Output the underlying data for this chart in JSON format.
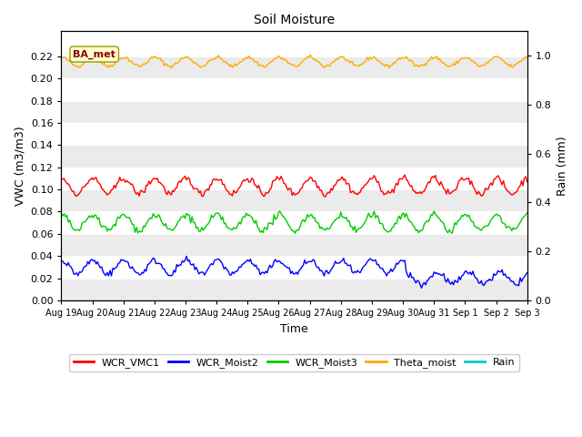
{
  "title": "Soil Moisture",
  "ylabel_left": "VWC (m3/m3)",
  "ylabel_right": "Rain (mm)",
  "xlabel": "Time",
  "background_color": "#ffffff",
  "plot_bg_color": "#ffffff",
  "band_color_light": "#ebebeb",
  "band_color_white": "#ffffff",
  "ylim_left": [
    0.0,
    0.2425
  ],
  "ylim_right": [
    0.0,
    1.1
  ],
  "yticks_left": [
    0.0,
    0.02,
    0.04,
    0.06,
    0.08,
    0.1,
    0.12,
    0.14,
    0.16,
    0.18,
    0.2,
    0.22
  ],
  "yticks_right_vals": [
    0.0,
    0.2,
    0.4,
    0.6,
    0.8,
    1.0
  ],
  "yticks_right_labels": [
    "0.0",
    "0.2",
    "0.4",
    "0.6",
    "0.8",
    "1.0"
  ],
  "colors": {
    "WCR_VMC1": "#ff0000",
    "WCR_Moist2": "#0000ff",
    "WCR_Moist3": "#00cc00",
    "Theta_moist": "#ffaa00",
    "Rain": "#00cccc"
  },
  "n_points": 336,
  "theta_mean": 0.215,
  "theta_amp": 0.004,
  "wcr1_mean": 0.103,
  "wcr1_amp": 0.007,
  "wcr2_mean": 0.03,
  "wcr2_amp": 0.006,
  "wcr3_mean": 0.07,
  "wcr3_amp": 0.007,
  "legend_labels": [
    "WCR_VMC1",
    "WCR_Moist2",
    "WCR_Moist3",
    "Theta_moist",
    "Rain"
  ],
  "annotation_text": "BA_met",
  "xtick_labels": [
    "Aug 19",
    "Aug 20",
    "Aug 21",
    "Aug 22",
    "Aug 23",
    "Aug 24",
    "Aug 25",
    "Aug 26",
    "Aug 27",
    "Aug 28",
    "Aug 29",
    "Aug 30",
    "Aug 31",
    "Sep 1",
    "Sep 2",
    "Sep 3"
  ],
  "line_width": 1.0,
  "title_fontsize": 10,
  "axis_fontsize": 9,
  "tick_fontsize": 8,
  "legend_fontsize": 8
}
